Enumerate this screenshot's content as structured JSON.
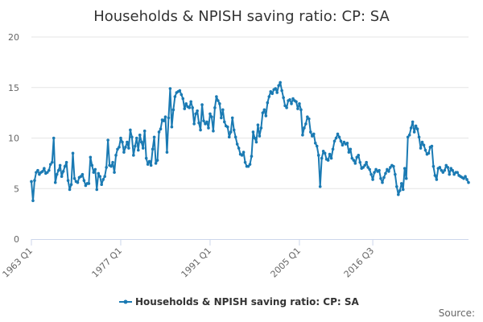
{
  "chart_data": {
    "type": "line",
    "title": "Households & NPISH saving ratio: CP: SA",
    "xlabel": "",
    "ylabel": "",
    "ylim": [
      0,
      20
    ],
    "yticks": [
      "0",
      "5",
      "10",
      "15",
      "20"
    ],
    "x_tick_labels": [
      "1963 Q1",
      "1977 Q1",
      "1991 Q1",
      "2005 Q1",
      "2016 Q3"
    ],
    "x_tick_indices": [
      0,
      56,
      112,
      168,
      214
    ],
    "legend": "Households & NPISH saving ratio: CP: SA",
    "source_label": "Source:",
    "series": [
      {
        "name": "Households & NPISH saving ratio: CP: SA",
        "color": "#1a7ab3",
        "values": [
          5.7,
          3.8,
          5.8,
          6.6,
          6.8,
          6.4,
          6.6,
          6.7,
          7.0,
          6.5,
          6.6,
          6.8,
          7.4,
          7.6,
          10.0,
          5.6,
          6.4,
          6.8,
          7.3,
          6.2,
          6.7,
          7.2,
          7.6,
          5.8,
          4.9,
          5.4,
          8.5,
          6.0,
          5.7,
          5.6,
          6.1,
          6.2,
          6.4,
          5.8,
          5.3,
          5.5,
          5.5,
          8.1,
          7.3,
          6.6,
          6.9,
          4.9,
          6.5,
          6.2,
          5.4,
          5.9,
          6.2,
          7.1,
          9.8,
          7.3,
          7.2,
          7.6,
          6.6,
          8.3,
          8.9,
          9.1,
          10.0,
          9.6,
          8.6,
          9.1,
          9.6,
          9.0,
          10.8,
          10.1,
          8.3,
          9.2,
          10.0,
          8.8,
          10.3,
          9.6,
          9.0,
          10.7,
          8.0,
          7.4,
          7.7,
          7.3,
          8.9,
          10.1,
          7.5,
          7.8,
          10.6,
          10.9,
          11.8,
          11.7,
          12.1,
          8.6,
          12.0,
          14.9,
          11.1,
          12.8,
          14.1,
          14.5,
          14.6,
          14.7,
          14.3,
          13.9,
          12.9,
          13.4,
          13.1,
          13.0,
          13.6,
          13.0,
          11.4,
          12.4,
          12.7,
          11.5,
          10.8,
          13.3,
          11.7,
          11.4,
          11.6,
          11.0,
          12.4,
          12.1,
          10.7,
          13.0,
          14.1,
          13.7,
          13.4,
          12.0,
          12.8,
          11.6,
          11.2,
          11.1,
          10.1,
          10.6,
          12.0,
          10.8,
          10.1,
          9.4,
          9.0,
          8.4,
          8.3,
          8.6,
          7.6,
          7.2,
          7.2,
          7.4,
          8.2,
          10.6,
          10.0,
          9.6,
          11.3,
          10.2,
          11.0,
          12.5,
          12.8,
          12.2,
          13.5,
          14.1,
          14.6,
          14.4,
          14.8,
          14.9,
          14.5,
          15.2,
          15.5,
          14.7,
          14.0,
          13.2,
          13.0,
          13.7,
          13.8,
          13.4,
          13.9,
          13.7,
          13.6,
          12.9,
          13.4,
          12.8,
          10.3,
          11.0,
          11.4,
          12.1,
          11.9,
          10.6,
          10.2,
          10.4,
          9.5,
          9.2,
          8.3,
          5.2,
          8.0,
          8.7,
          8.5,
          7.9,
          7.8,
          8.4,
          8.0,
          8.9,
          9.7,
          10.0,
          10.4,
          10.1,
          9.7,
          9.3,
          9.6,
          9.4,
          9.5,
          8.6,
          8.9,
          8.0,
          7.8,
          7.5,
          8.1,
          8.3,
          7.6,
          7.0,
          7.1,
          7.3,
          7.6,
          7.1,
          6.9,
          6.4,
          5.9,
          6.6,
          6.9,
          6.7,
          6.8,
          6.0,
          5.6,
          6.1,
          6.5,
          6.9,
          6.7,
          7.1,
          7.3,
          7.2,
          6.4,
          5.2,
          4.4,
          4.8,
          5.5,
          4.9,
          7.0,
          6.0,
          10.1,
          10.3,
          11.0,
          11.6,
          10.6,
          11.2,
          10.9,
          10.1,
          9.0,
          9.6,
          9.3,
          8.8,
          8.4,
          8.5,
          9.1,
          9.2,
          7.2,
          6.3,
          5.9,
          7.0,
          7.1,
          6.8,
          6.6,
          6.8,
          7.3,
          7.1,
          6.4,
          7.0,
          6.8,
          6.4,
          6.6,
          6.6,
          6.3,
          6.2,
          6.1,
          6.0,
          6.2,
          5.9,
          5.6
        ]
      }
    ]
  }
}
